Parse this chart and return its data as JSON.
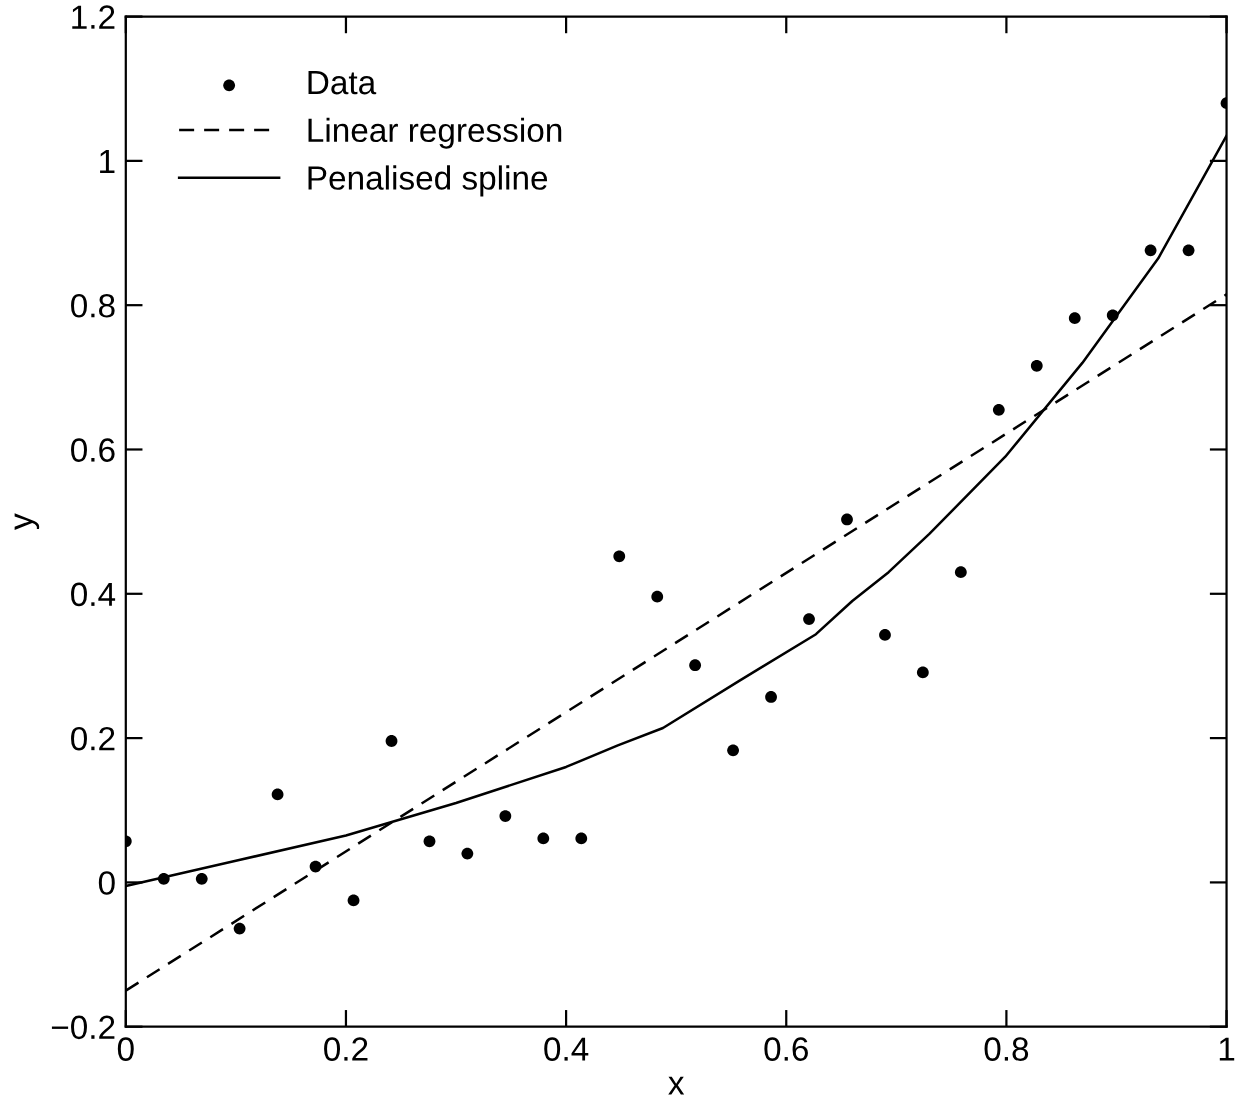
{
  "chart_data": {
    "type": "scatter",
    "xlabel": "x",
    "ylabel": "y",
    "xlim": [
      0,
      1
    ],
    "ylim": [
      -0.2,
      1.2
    ],
    "xticks": [
      0,
      0.2,
      0.4,
      0.6,
      0.8,
      1
    ],
    "yticks": [
      {
        "value": -0.2,
        "label": "−0.2"
      },
      0,
      0.2,
      0.4,
      0.6,
      0.8,
      1,
      1.2
    ],
    "legend": "top left",
    "grid": false,
    "series": [
      {
        "name": "Data",
        "marker": "circle",
        "color": "#000000",
        "x": [
          0,
          0.0345,
          0.069,
          0.1034,
          0.1379,
          0.1724,
          0.2069,
          0.2414,
          0.2759,
          0.3103,
          0.3448,
          0.3793,
          0.4138,
          0.4483,
          0.4828,
          0.5172,
          0.5517,
          0.5862,
          0.6207,
          0.6552,
          0.6897,
          0.7241,
          0.7586,
          0.7931,
          0.8276,
          0.8621,
          0.8966,
          0.931,
          0.9655,
          1
        ],
        "values": [
          0.057,
          0.005,
          0.005,
          -0.064,
          0.122,
          0.022,
          -0.025,
          0.196,
          0.057,
          0.04,
          0.092,
          0.061,
          0.061,
          0.452,
          0.396,
          0.301,
          0.183,
          0.257,
          0.365,
          0.503,
          0.343,
          0.291,
          0.43,
          0.655,
          0.716,
          0.782,
          0.786,
          0.876,
          0.876,
          1.08
        ]
      },
      {
        "name": "Linear regression",
        "type": "line",
        "line_style": "dashed",
        "color": "#000000",
        "x": [
          0,
          1
        ],
        "values": [
          -0.15,
          0.815
        ]
      },
      {
        "name": "Penalised spline",
        "type": "line",
        "line_style": "solid",
        "color": "#000000",
        "x": [
          0,
          0.1,
          0.2,
          0.3,
          0.4,
          0.447,
          0.488,
          0.558,
          0.627,
          0.66,
          0.693,
          0.73,
          0.799,
          0.869,
          0.938,
          1
        ],
        "values": [
          -0.005,
          0.03,
          0.065,
          0.11,
          0.16,
          0.19,
          0.214,
          0.28,
          0.344,
          0.39,
          0.43,
          0.483,
          0.59,
          0.72,
          0.865,
          1.035
        ]
      }
    ]
  }
}
